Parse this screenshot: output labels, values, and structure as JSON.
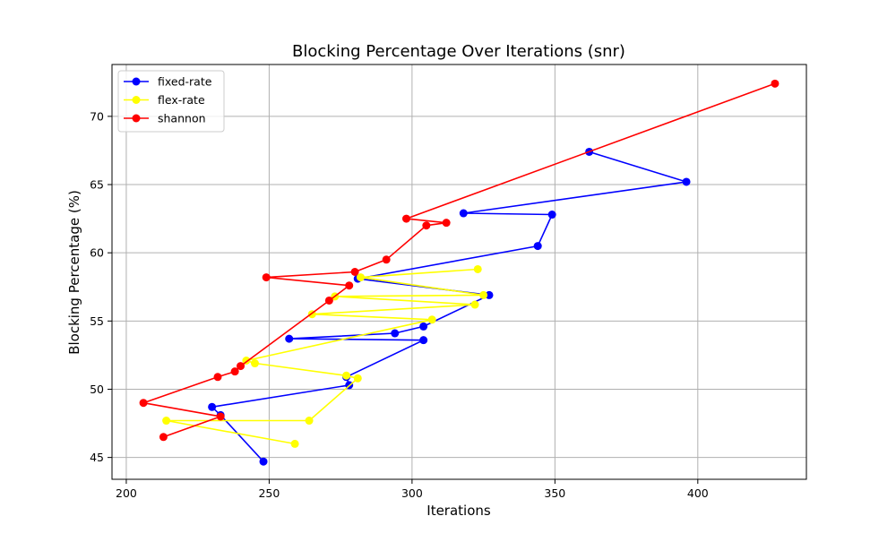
{
  "chart_data": {
    "type": "line",
    "title": "Blocking Percentage Over Iterations (snr)",
    "xlabel": "Iterations",
    "ylabel": "Blocking Percentage (%)",
    "xlim": [
      195,
      438
    ],
    "ylim": [
      43.4,
      73.8
    ],
    "xticks": [
      200,
      250,
      300,
      350,
      400
    ],
    "yticks": [
      45,
      50,
      55,
      60,
      65,
      70
    ],
    "grid": true,
    "legend_position": "top-left",
    "series": [
      {
        "name": "fixed-rate",
        "color": "#0000ff",
        "points": [
          [
            248,
            44.7
          ],
          [
            233,
            48.1
          ],
          [
            230,
            48.7
          ],
          [
            278,
            50.3
          ],
          [
            277,
            50.9
          ],
          [
            304,
            53.6
          ],
          [
            257,
            53.7
          ],
          [
            294,
            54.1
          ],
          [
            304,
            54.6
          ],
          [
            327,
            56.9
          ],
          [
            281,
            58.1
          ],
          [
            344,
            60.5
          ],
          [
            349,
            62.8
          ],
          [
            318,
            62.9
          ],
          [
            396,
            65.2
          ],
          [
            362,
            67.4
          ]
        ]
      },
      {
        "name": "flex-rate",
        "color": "#ffff00",
        "points": [
          [
            259,
            46.0
          ],
          [
            214,
            47.7
          ],
          [
            264,
            47.7
          ],
          [
            281,
            50.8
          ],
          [
            277,
            51.0
          ],
          [
            245,
            51.9
          ],
          [
            242,
            52.1
          ],
          [
            307,
            55.1
          ],
          [
            265,
            55.5
          ],
          [
            322,
            56.2
          ],
          [
            273,
            56.8
          ],
          [
            325,
            56.9
          ],
          [
            282,
            58.2
          ],
          [
            323,
            58.8
          ]
        ]
      },
      {
        "name": "shannon",
        "color": "#ff0000",
        "points": [
          [
            213,
            46.5
          ],
          [
            233,
            48.0
          ],
          [
            206,
            49.0
          ],
          [
            232,
            50.9
          ],
          [
            238,
            51.3
          ],
          [
            240,
            51.7
          ],
          [
            271,
            56.5
          ],
          [
            278,
            57.6
          ],
          [
            249,
            58.2
          ],
          [
            280,
            58.6
          ],
          [
            291,
            59.5
          ],
          [
            305,
            62.0
          ],
          [
            312,
            62.2
          ],
          [
            298,
            62.5
          ],
          [
            427,
            72.4
          ]
        ]
      }
    ]
  }
}
